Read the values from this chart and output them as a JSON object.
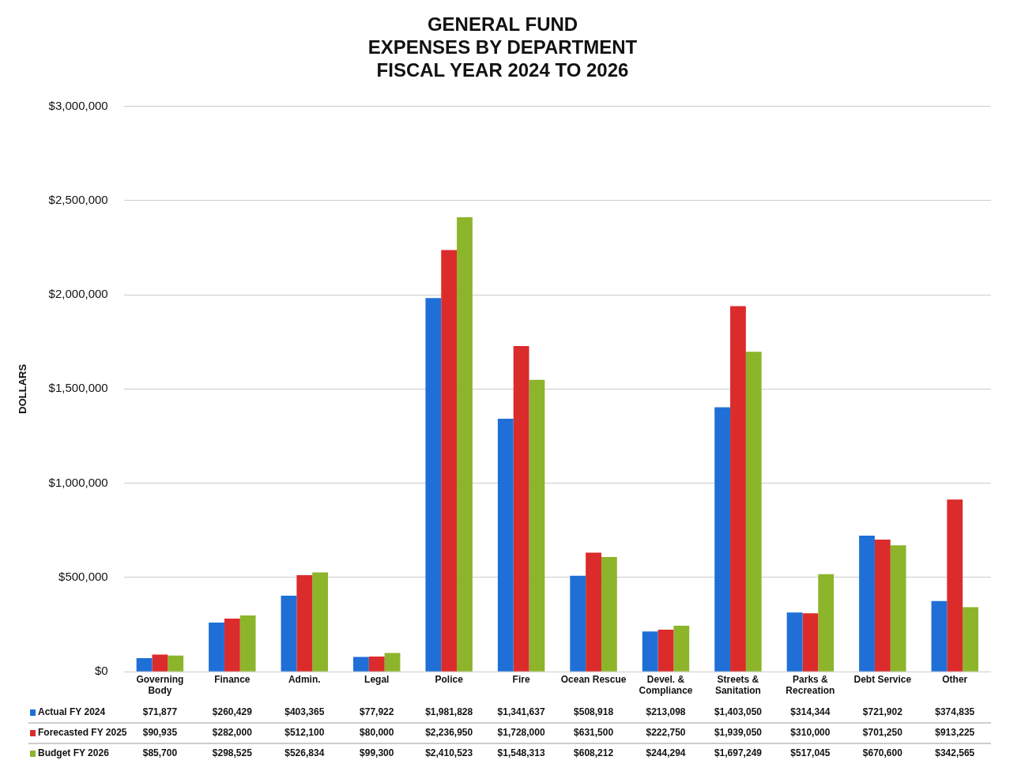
{
  "chart_data": {
    "type": "bar",
    "title": "GENERAL FUND\nEXPENSES BY DEPARTMENT\nFISCAL YEAR 2024 TO 2026",
    "ylabel": "DOLLARS",
    "categories": [
      "Governing Body",
      "Finance",
      "Admin.",
      "Legal",
      "Police",
      "Fire",
      "Ocean Rescue",
      "Devel. & Compliance",
      "Streets & Sanitation",
      "Parks & Recreation",
      "Debt Service",
      "Other"
    ],
    "series": [
      {
        "name": "Actual FY 2024",
        "color": "#1f6fd6",
        "values": [
          71877,
          260429,
          403365,
          77922,
          1981828,
          1341637,
          508918,
          213098,
          1403050,
          314344,
          721902,
          374835
        ],
        "value_labels": [
          "$71,877",
          "$260,429",
          "$403,365",
          "$77,922",
          "$1,981,828",
          "$1,341,637",
          "$508,918",
          "$213,098",
          "$1,403,050",
          "$314,344",
          "$721,902",
          "$374,835"
        ]
      },
      {
        "name": "Forecasted FY 2025",
        "color": "#db2b2b",
        "values": [
          90935,
          282000,
          512100,
          80000,
          2236950,
          1728000,
          631500,
          222750,
          1939050,
          310000,
          701250,
          913225
        ],
        "value_labels": [
          "$90,935",
          "$282,000",
          "$512,100",
          "$80,000",
          "$2,236,950",
          "$1,728,000",
          "$631,500",
          "$222,750",
          "$1,939,050",
          "$310,000",
          "$701,250",
          "$913,225"
        ]
      },
      {
        "name": "Budget FY 2026",
        "color": "#8cb52b",
        "values": [
          85700,
          298525,
          526834,
          99300,
          2410523,
          1548313,
          608212,
          244294,
          1697249,
          517045,
          670600,
          342565
        ],
        "value_labels": [
          "$85,700",
          "$298,525",
          "$526,834",
          "$99,300",
          "$2,410,523",
          "$1,548,313",
          "$608,212",
          "$244,294",
          "$1,697,249",
          "$517,045",
          "$670,600",
          "$342,565"
        ]
      }
    ],
    "ylim": [
      0,
      3000000
    ],
    "yticks": [
      {
        "value": 0,
        "label": "$0"
      },
      {
        "value": 500000,
        "label": "$500,000"
      },
      {
        "value": 1000000,
        "label": "$1,000,000"
      },
      {
        "value": 1500000,
        "label": "$1,500,000"
      },
      {
        "value": 2000000,
        "label": "$2,000,000"
      },
      {
        "value": 2500000,
        "label": "$2,500,000"
      },
      {
        "value": 3000000,
        "label": "$3,000,000"
      }
    ],
    "grid": "y",
    "legend": "bottom left"
  }
}
